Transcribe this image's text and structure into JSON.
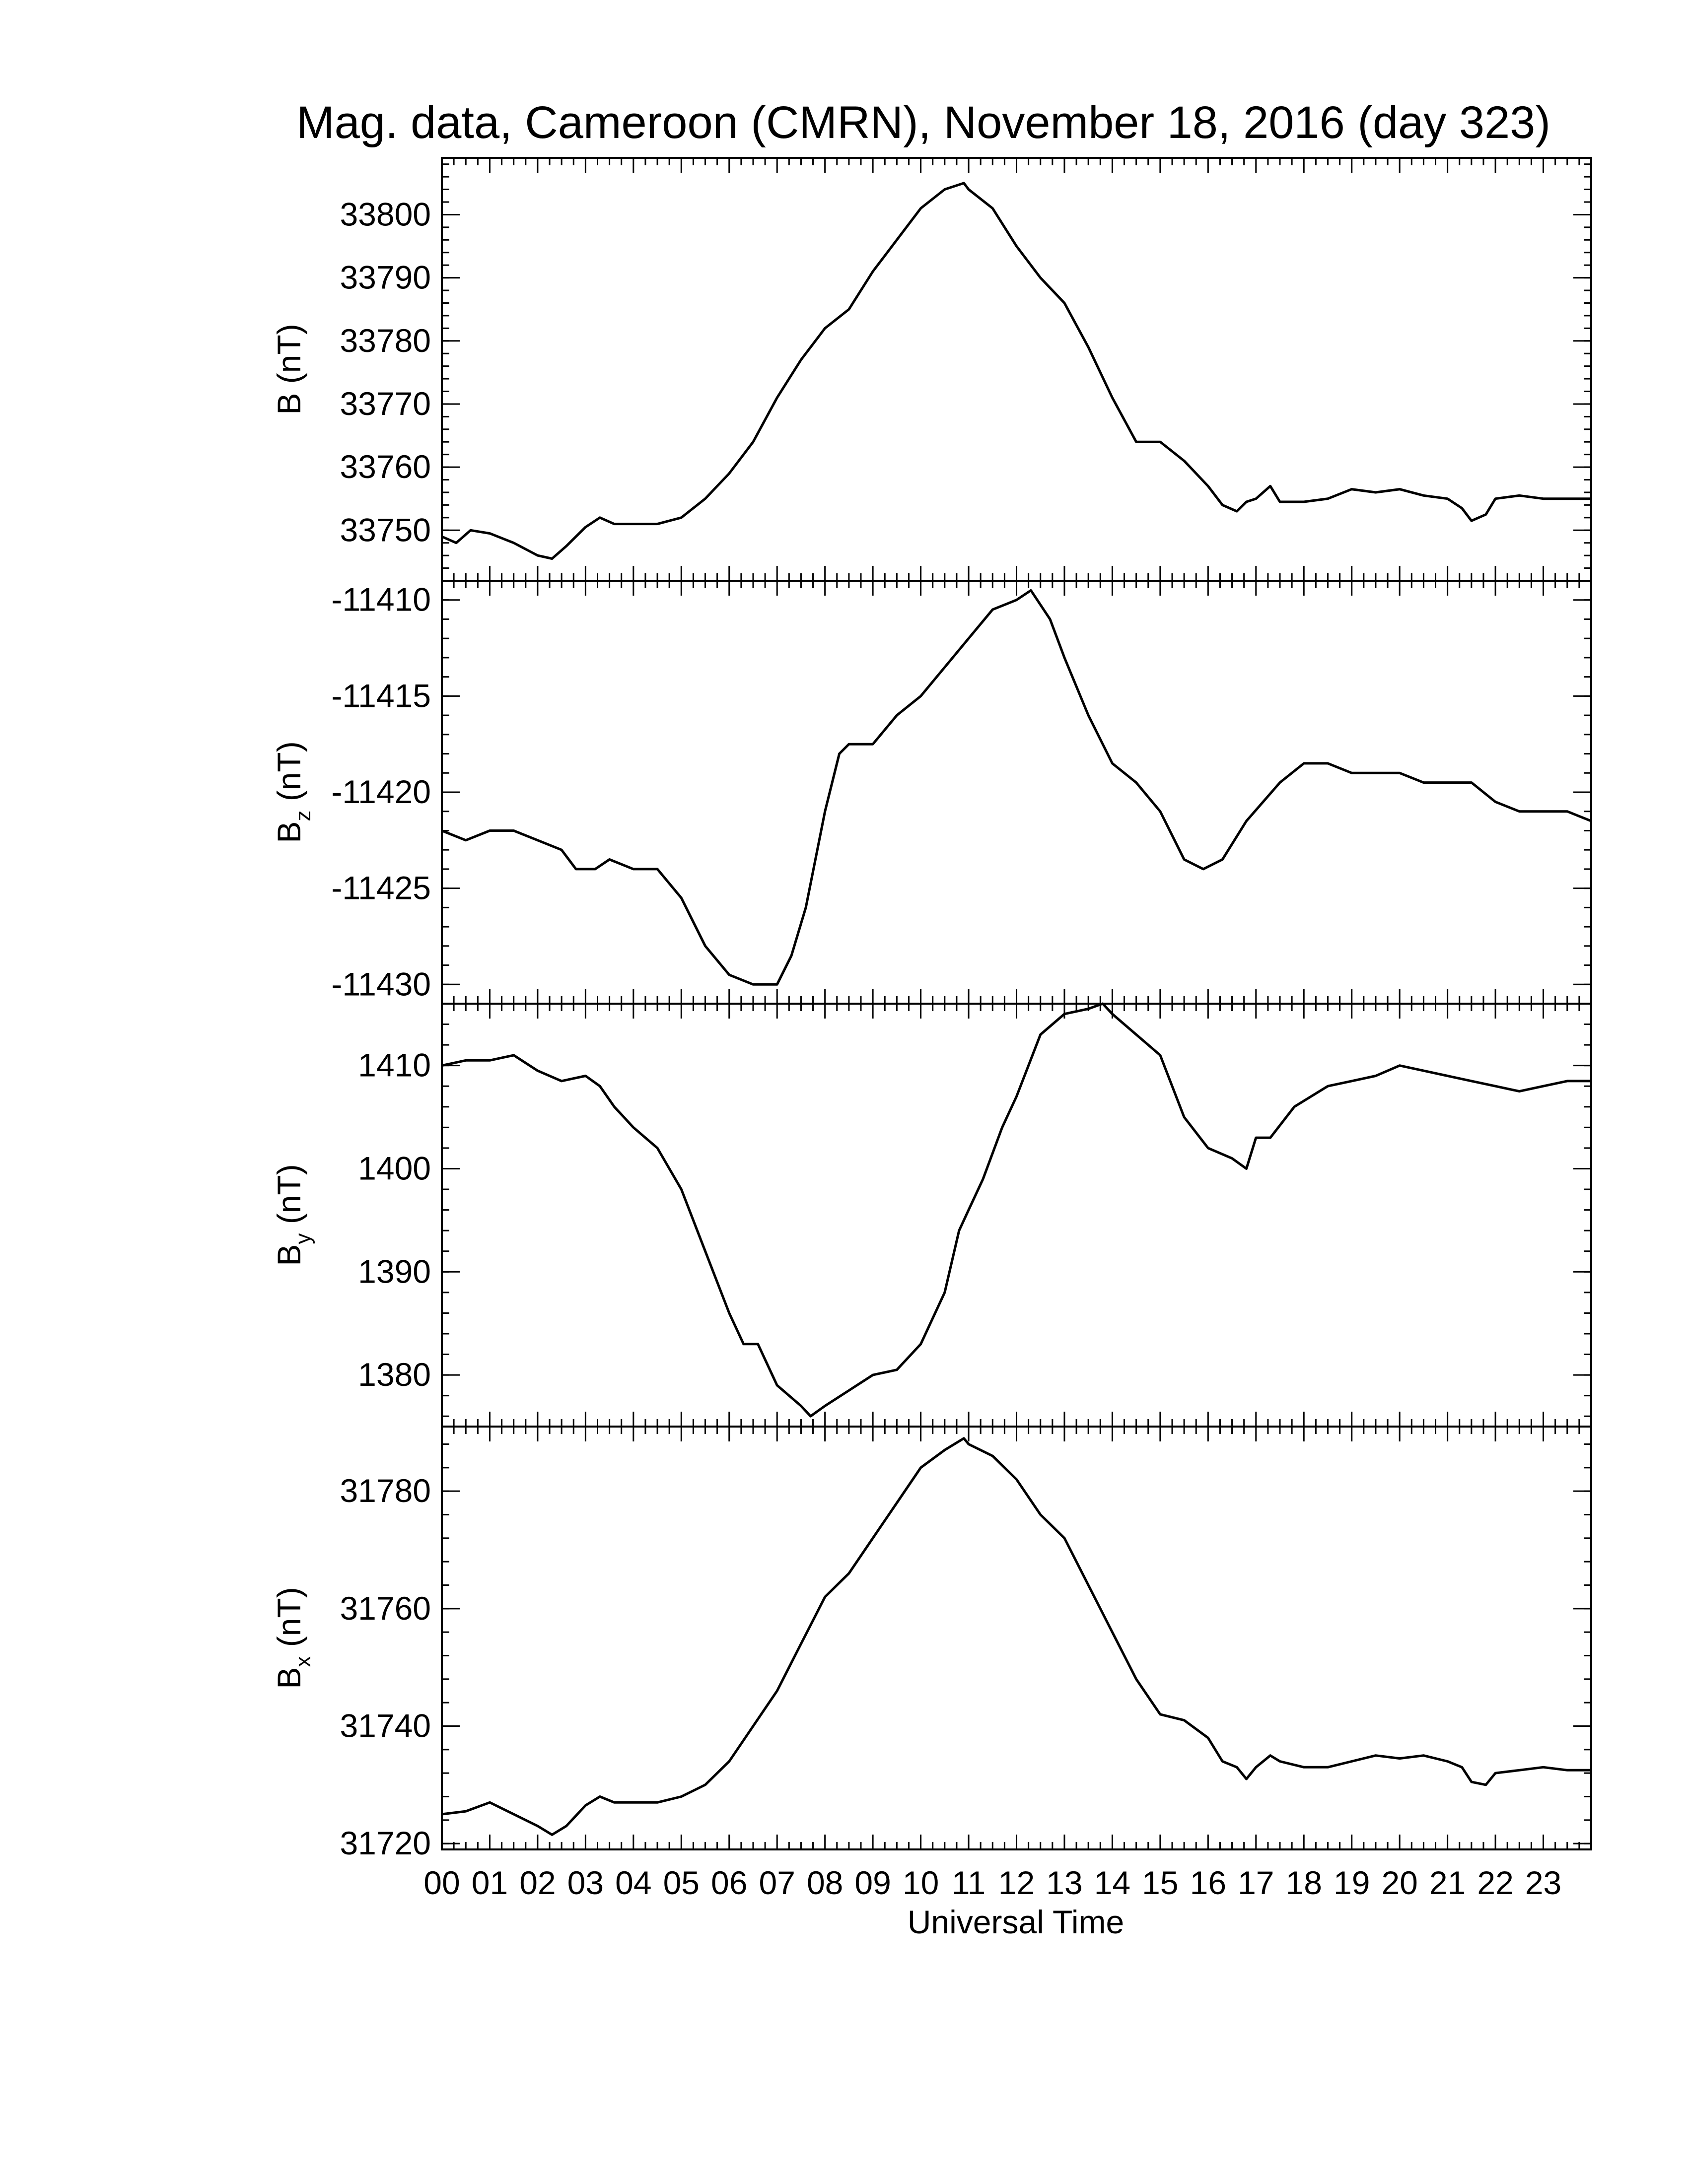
{
  "chart_data": {
    "type": "line",
    "title": "Mag. data, Cameroon (CMRN), November 18, 2016 (day 323)",
    "xlabel": "Universal Time",
    "x_tick_labels": [
      "00",
      "01",
      "02",
      "03",
      "04",
      "05",
      "06",
      "07",
      "08",
      "09",
      "10",
      "11",
      "12",
      "13",
      "14",
      "15",
      "16",
      "17",
      "18",
      "19",
      "20",
      "21",
      "22",
      "23"
    ],
    "xlim": [
      0,
      24
    ],
    "grid": false,
    "panels": [
      {
        "ylabel_main": "B",
        "ylabel_sub": "",
        "ylabel_unit": "(nT)",
        "ylim": [
          33742,
          33809
        ],
        "yticks": [
          33750,
          33760,
          33770,
          33780,
          33790,
          33800
        ],
        "ytick_labels": [
          "33750",
          "33760",
          "33770",
          "33780",
          "33790",
          "33800"
        ],
        "series": [
          {
            "x": [
              0,
              0.3,
              0.6,
              1.0,
              1.5,
              2.0,
              2.3,
              2.6,
              3.0,
              3.3,
              3.6,
              4.0,
              4.5,
              5.0,
              5.5,
              6.0,
              6.5,
              7.0,
              7.5,
              8.0,
              8.5,
              9.0,
              9.5,
              10.0,
              10.5,
              10.9,
              11.0,
              11.5,
              12.0,
              12.5,
              13.0,
              13.5,
              14.0,
              14.5,
              15.0,
              15.5,
              16.0,
              16.3,
              16.6,
              16.8,
              17.0,
              17.3,
              17.5,
              18.0,
              18.5,
              19.0,
              19.5,
              20.0,
              20.5,
              21.0,
              21.3,
              21.5,
              21.8,
              22.0,
              22.5,
              23.0,
              23.5,
              24.0
            ],
            "y": [
              33749,
              33748,
              33750,
              33749.5,
              33748,
              33746,
              33745.5,
              33747.5,
              33750.5,
              33752,
              33751,
              33751,
              33751,
              33752,
              33755,
              33759,
              33764,
              33771,
              33777,
              33782,
              33785,
              33791,
              33796,
              33801,
              33804,
              33805,
              33804,
              33801,
              33795,
              33790,
              33786,
              33779,
              33771,
              33764,
              33764,
              33761,
              33757,
              33754,
              33753,
              33754.5,
              33755,
              33757,
              33754.5,
              33754.5,
              33755,
              33756.5,
              33756,
              33756.5,
              33755.5,
              33755,
              33753.5,
              33751.5,
              33752.5,
              33755,
              33755.5,
              33755,
              33755,
              33755
            ]
          }
        ]
      },
      {
        "ylabel_main": "B",
        "ylabel_sub": "z",
        "ylabel_unit": "(nT)",
        "ylim": [
          -11431,
          -11409
        ],
        "yticks": [
          -11430,
          -11425,
          -11420,
          -11415,
          -11410
        ],
        "ytick_labels": [
          "-11430",
          "-11425",
          "-11420",
          "-11415",
          "-11410"
        ],
        "series": [
          {
            "x": [
              0,
              0.5,
              1.0,
              1.5,
              2.0,
              2.5,
              2.8,
              3.2,
              3.5,
              4.0,
              4.5,
              5.0,
              5.5,
              6.0,
              6.5,
              6.8,
              7.0,
              7.3,
              7.6,
              8.0,
              8.3,
              8.5,
              9.0,
              9.5,
              10.0,
              10.5,
              11.0,
              11.5,
              12.0,
              12.3,
              12.7,
              13.0,
              13.5,
              14.0,
              14.5,
              15.0,
              15.5,
              15.9,
              16.3,
              16.8,
              17.5,
              18.0,
              18.5,
              19.0,
              19.5,
              20.0,
              20.5,
              21.0,
              21.5,
              22.0,
              22.5,
              23.0,
              23.5,
              24.0
            ],
            "y": [
              -11422,
              -11422.5,
              -11422,
              -11422,
              -11422.5,
              -11423,
              -11424,
              -11424,
              -11423.5,
              -11424,
              -11424,
              -11425.5,
              -11428,
              -11429.5,
              -11430,
              -11430,
              -11430,
              -11428.5,
              -11426,
              -11421,
              -11418,
              -11417.5,
              -11417.5,
              -11416,
              -11415,
              -11413.5,
              -11412,
              -11410.5,
              -11410,
              -11409.5,
              -11411,
              -11413,
              -11416,
              -11418.5,
              -11419.5,
              -11421,
              -11423.5,
              -11424,
              -11423.5,
              -11421.5,
              -11419.5,
              -11418.5,
              -11418.5,
              -11419,
              -11419,
              -11419,
              -11419.5,
              -11419.5,
              -11419.5,
              -11420.5,
              -11421,
              -11421,
              -11421,
              -11421.5
            ]
          }
        ]
      },
      {
        "ylabel_main": "B",
        "ylabel_sub": "y",
        "ylabel_unit": "(nT)",
        "ylim": [
          1375,
          1416
        ],
        "yticks": [
          1380,
          1390,
          1400,
          1410
        ],
        "ytick_labels": [
          "1380",
          "1390",
          "1400",
          "1410"
        ],
        "series": [
          {
            "x": [
              0,
              0.5,
              1.0,
              1.5,
              2.0,
              2.5,
              3.0,
              3.3,
              3.6,
              4.0,
              4.5,
              5.0,
              5.5,
              6.0,
              6.3,
              6.6,
              7.0,
              7.5,
              7.7,
              8.0,
              8.5,
              9.0,
              9.5,
              10.0,
              10.5,
              10.8,
              11.0,
              11.3,
              11.7,
              12.0,
              12.5,
              13.0,
              13.5,
              13.8,
              14.0,
              14.5,
              15.0,
              15.5,
              16.0,
              16.5,
              16.8,
              17.0,
              17.3,
              17.8,
              18.5,
              19.0,
              19.5,
              20.0,
              20.5,
              21.0,
              21.5,
              22.0,
              22.5,
              23.0,
              23.5,
              24.0
            ],
            "y": [
              1410,
              1410.5,
              1410.5,
              1411,
              1409.5,
              1408.5,
              1409,
              1408,
              1406,
              1404,
              1402,
              1398,
              1392,
              1386,
              1383,
              1383,
              1379,
              1377,
              1376,
              1377,
              1378.5,
              1380,
              1380.5,
              1383,
              1388,
              1394,
              1396,
              1399,
              1404,
              1407,
              1413,
              1415,
              1415.5,
              1416,
              1415,
              1413,
              1411,
              1405,
              1402,
              1401,
              1400,
              1403,
              1403,
              1406,
              1408,
              1408.5,
              1409,
              1410,
              1409.5,
              1409,
              1408.5,
              1408,
              1407.5,
              1408,
              1408.5,
              1408.5
            ]
          }
        ]
      },
      {
        "ylabel_main": "B",
        "ylabel_sub": "x",
        "ylabel_unit": "(nT)",
        "ylim": [
          31719,
          31791
        ],
        "yticks": [
          31720,
          31740,
          31760,
          31780
        ],
        "ytick_labels": [
          "31720",
          "31740",
          "31760",
          "31780"
        ],
        "series": [
          {
            "x": [
              0,
              0.5,
              1.0,
              1.5,
              2.0,
              2.3,
              2.6,
              3.0,
              3.3,
              3.6,
              4.0,
              4.5,
              5.0,
              5.5,
              6.0,
              6.5,
              7.0,
              7.5,
              8.0,
              8.5,
              9.0,
              9.5,
              10.0,
              10.5,
              10.9,
              11.0,
              11.5,
              12.0,
              12.5,
              13.0,
              13.5,
              14.0,
              14.5,
              15.0,
              15.5,
              16.0,
              16.3,
              16.6,
              16.8,
              17.0,
              17.3,
              17.5,
              18.0,
              18.5,
              19.0,
              19.5,
              20.0,
              20.5,
              21.0,
              21.3,
              21.5,
              21.8,
              22.0,
              22.5,
              23.0,
              23.5,
              24.0
            ],
            "y": [
              31725,
              31725.5,
              31727,
              31725,
              31723,
              31721.5,
              31723,
              31726.5,
              31728,
              31727,
              31727,
              31727,
              31728,
              31730,
              31734,
              31740,
              31746,
              31754,
              31762,
              31766,
              31772,
              31778,
              31784,
              31787,
              31789,
              31788,
              31786,
              31782,
              31776,
              31772,
              31764,
              31756,
              31748,
              31742,
              31741,
              31738,
              31734,
              31733,
              31731,
              31733,
              31735,
              31734,
              31733,
              31733,
              31734,
              31735,
              31734.5,
              31735,
              31734,
              31733,
              31730.5,
              31730,
              31732,
              31732.5,
              31733,
              31732.5,
              31732.5
            ]
          }
        ]
      }
    ]
  }
}
